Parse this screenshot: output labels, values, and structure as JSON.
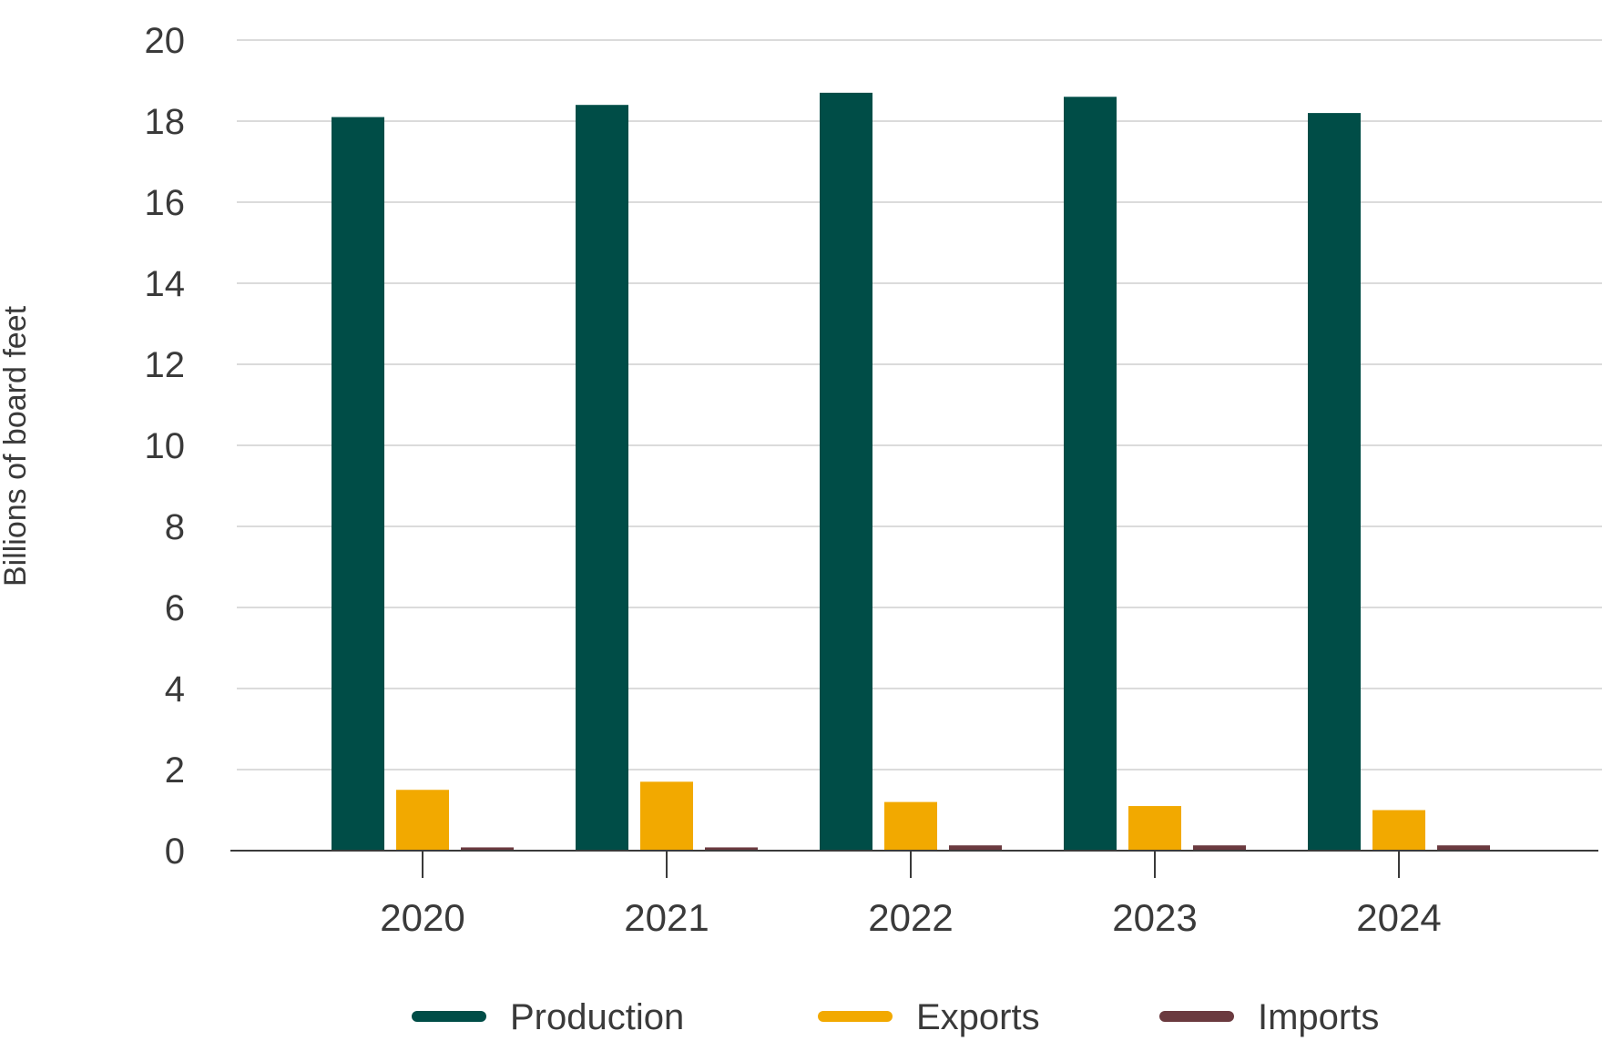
{
  "chart_data": {
    "type": "bar",
    "title": "",
    "xlabel": "",
    "ylabel": "Billions of board feet",
    "ylim": [
      0,
      20
    ],
    "yticks": [
      "0",
      "2",
      "4",
      "6",
      "8",
      "10",
      "12",
      "14",
      "16",
      "18",
      "20"
    ],
    "grid": true,
    "legend_position": "bottom",
    "categories": [
      "2020",
      "2021",
      "2022",
      "2023",
      "2024"
    ],
    "series": [
      {
        "name": "Production",
        "color": "#004d47",
        "values": [
          18.1,
          18.4,
          18.7,
          18.6,
          18.2
        ]
      },
      {
        "name": "Exports",
        "color": "#f2a900",
        "values": [
          1.5,
          1.7,
          1.2,
          1.1,
          1.0
        ]
      },
      {
        "name": "Imports",
        "color": "#6b3a3f",
        "values": [
          0.08,
          0.08,
          0.13,
          0.13,
          0.13
        ]
      }
    ]
  }
}
